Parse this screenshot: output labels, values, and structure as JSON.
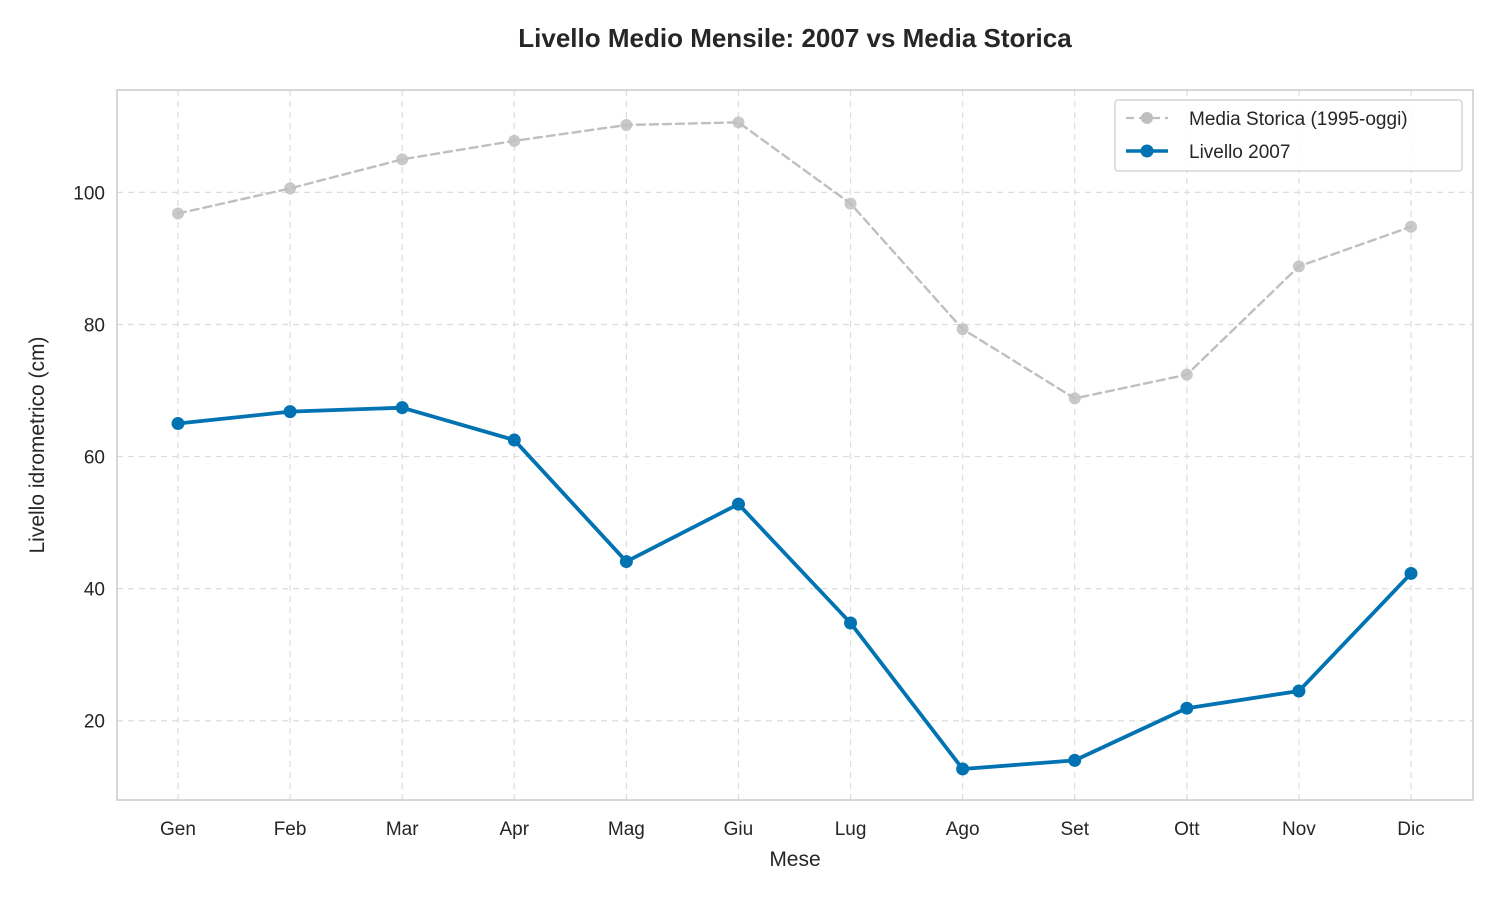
{
  "chart_data": {
    "type": "line",
    "title": "Livello Medio Mensile: 2007 vs Media Storica",
    "xlabel": "Mese",
    "ylabel": "Livello idrometrico (cm)",
    "categories": [
      "Gen",
      "Feb",
      "Mar",
      "Apr",
      "Mag",
      "Giu",
      "Lug",
      "Ago",
      "Set",
      "Ott",
      "Nov",
      "Dic"
    ],
    "ylim": [
      8,
      115.5
    ],
    "yticks": [
      20,
      40,
      60,
      80,
      100
    ],
    "grid": true,
    "legend_position": "top-right",
    "series": [
      {
        "name": "Media Storica (1995-oggi)",
        "values": [
          96.8,
          100.6,
          105.0,
          107.8,
          110.2,
          110.6,
          98.3,
          79.3,
          68.8,
          72.4,
          88.8,
          94.8
        ],
        "color": "#bfbfbf",
        "style": "dashed"
      },
      {
        "name": "Livello 2007",
        "values": [
          65.0,
          66.8,
          67.4,
          62.5,
          44.1,
          52.8,
          34.8,
          12.7,
          14.0,
          21.9,
          24.5,
          42.3
        ],
        "color": "#0173b2",
        "style": "solid"
      }
    ]
  }
}
